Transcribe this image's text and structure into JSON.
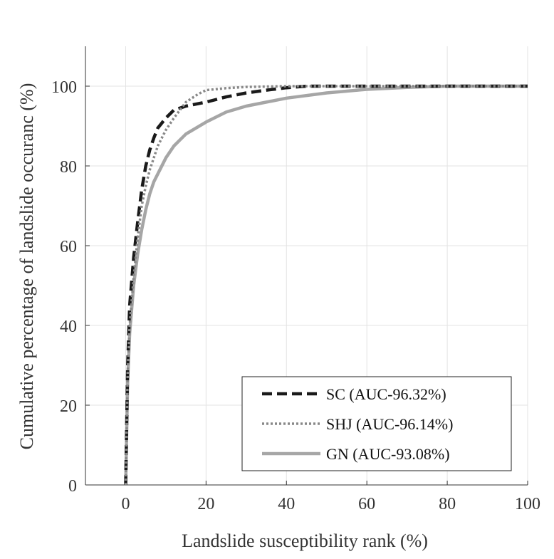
{
  "chart_data": {
    "type": "line",
    "title": "",
    "xlabel": "Landslide susceptibility rank (%)",
    "ylabel": "Cumulative percentage of landslide occuranc  (%)",
    "xlim": [
      -10,
      100
    ],
    "ylim": [
      0,
      110
    ],
    "xticks": [
      0,
      20,
      40,
      60,
      80,
      100
    ],
    "yticks": [
      0,
      20,
      40,
      60,
      80,
      100
    ],
    "grid": true,
    "legend_position": "bottom-right",
    "series": [
      {
        "name": "SC (AUC-96.32%)",
        "color": "#1a1a1a",
        "style": "dashed",
        "points": [
          [
            0,
            0
          ],
          [
            0.5,
            30
          ],
          [
            1,
            45
          ],
          [
            2,
            57
          ],
          [
            3,
            66
          ],
          [
            4,
            74
          ],
          [
            5,
            80
          ],
          [
            6,
            84
          ],
          [
            7,
            87
          ],
          [
            8,
            89.5
          ],
          [
            10,
            92
          ],
          [
            12,
            94
          ],
          [
            15,
            95
          ],
          [
            20,
            96
          ],
          [
            25,
            97.3
          ],
          [
            30,
            98.3
          ],
          [
            35,
            99
          ],
          [
            40,
            99.6
          ],
          [
            45,
            100
          ],
          [
            100,
            100
          ]
        ]
      },
      {
        "name": "SHJ (AUC-96.14%)",
        "color": "#888888",
        "style": "dotted",
        "points": [
          [
            0,
            0
          ],
          [
            0.5,
            28
          ],
          [
            1,
            40
          ],
          [
            2,
            52
          ],
          [
            3,
            62
          ],
          [
            4,
            70
          ],
          [
            5,
            75
          ],
          [
            6,
            79
          ],
          [
            8,
            85
          ],
          [
            10,
            89
          ],
          [
            12,
            92
          ],
          [
            15,
            96
          ],
          [
            18,
            98
          ],
          [
            20,
            99
          ],
          [
            25,
            99.5
          ],
          [
            30,
            99.8
          ],
          [
            40,
            100
          ],
          [
            100,
            100
          ]
        ]
      },
      {
        "name": "GN (AUC-93.08%)",
        "color": "#a6a6a6",
        "style": "solid",
        "points": [
          [
            0,
            0
          ],
          [
            0.5,
            26
          ],
          [
            1,
            38
          ],
          [
            2,
            50
          ],
          [
            3,
            58
          ],
          [
            4,
            64
          ],
          [
            5,
            69
          ],
          [
            6,
            73
          ],
          [
            7,
            76
          ],
          [
            8,
            78
          ],
          [
            10,
            82
          ],
          [
            12,
            85
          ],
          [
            15,
            88
          ],
          [
            20,
            91
          ],
          [
            25,
            93.5
          ],
          [
            30,
            95
          ],
          [
            40,
            97
          ],
          [
            50,
            98.3
          ],
          [
            60,
            99.2
          ],
          [
            70,
            99.7
          ],
          [
            80,
            100
          ],
          [
            100,
            100
          ]
        ]
      }
    ]
  }
}
